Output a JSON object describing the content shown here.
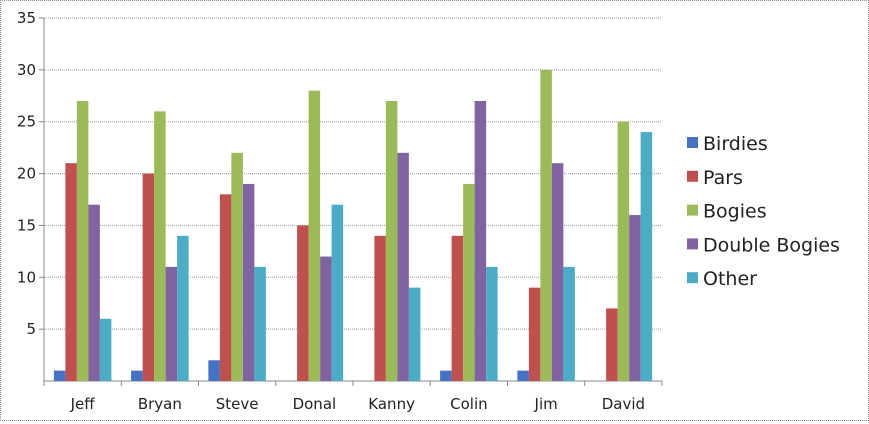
{
  "chart_data": {
    "type": "bar",
    "categories": [
      "Jeff",
      "Bryan",
      "Steve",
      "Donal",
      "Kanny",
      "Colin",
      "Jim",
      "David"
    ],
    "series": [
      {
        "name": "Birdies",
        "color": "#4472c4",
        "values": [
          1,
          1,
          2,
          0,
          0,
          1,
          1,
          0
        ]
      },
      {
        "name": "Pars",
        "color": "#c0504d",
        "values": [
          21,
          20,
          18,
          15,
          14,
          14,
          9,
          7
        ]
      },
      {
        "name": "Bogies",
        "color": "#9bbb59",
        "values": [
          27,
          26,
          22,
          28,
          27,
          19,
          30,
          25
        ]
      },
      {
        "name": "Double Bogies",
        "color": "#8064a2",
        "values": [
          17,
          11,
          19,
          12,
          22,
          27,
          21,
          16
        ]
      },
      {
        "name": "Other",
        "color": "#4bacc6",
        "values": [
          6,
          14,
          11,
          17,
          9,
          11,
          11,
          24
        ]
      }
    ],
    "yticks": [
      5,
      10,
      15,
      20,
      25,
      30,
      35
    ],
    "ylim": [
      0,
      35
    ],
    "grid": true,
    "legend_position": "right"
  }
}
